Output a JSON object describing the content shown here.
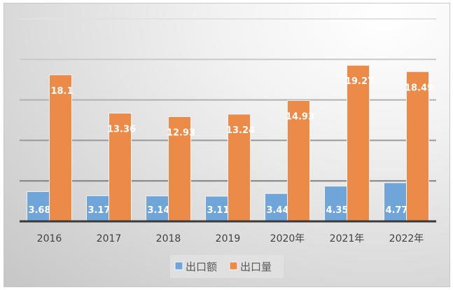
{
  "chart_data": {
    "type": "bar",
    "title": "",
    "xlabel": "",
    "ylabel": "",
    "categories": [
      "2016",
      "2017",
      "2018",
      "2019",
      "2020年",
      "2021年",
      "2022年"
    ],
    "series": [
      {
        "name": "出口额",
        "color": "#6fa5d8",
        "values": [
          3.68,
          3.17,
          3.14,
          3.11,
          3.44,
          4.35,
          4.77
        ]
      },
      {
        "name": "出口量",
        "color": "#ec8a48",
        "values": [
          18.1,
          13.36,
          12.93,
          13.24,
          14.93,
          19.27,
          18.49
        ]
      }
    ],
    "ylim": [
      0,
      25
    ],
    "ytick_step": 5,
    "grid": true,
    "legend": "bottom"
  }
}
